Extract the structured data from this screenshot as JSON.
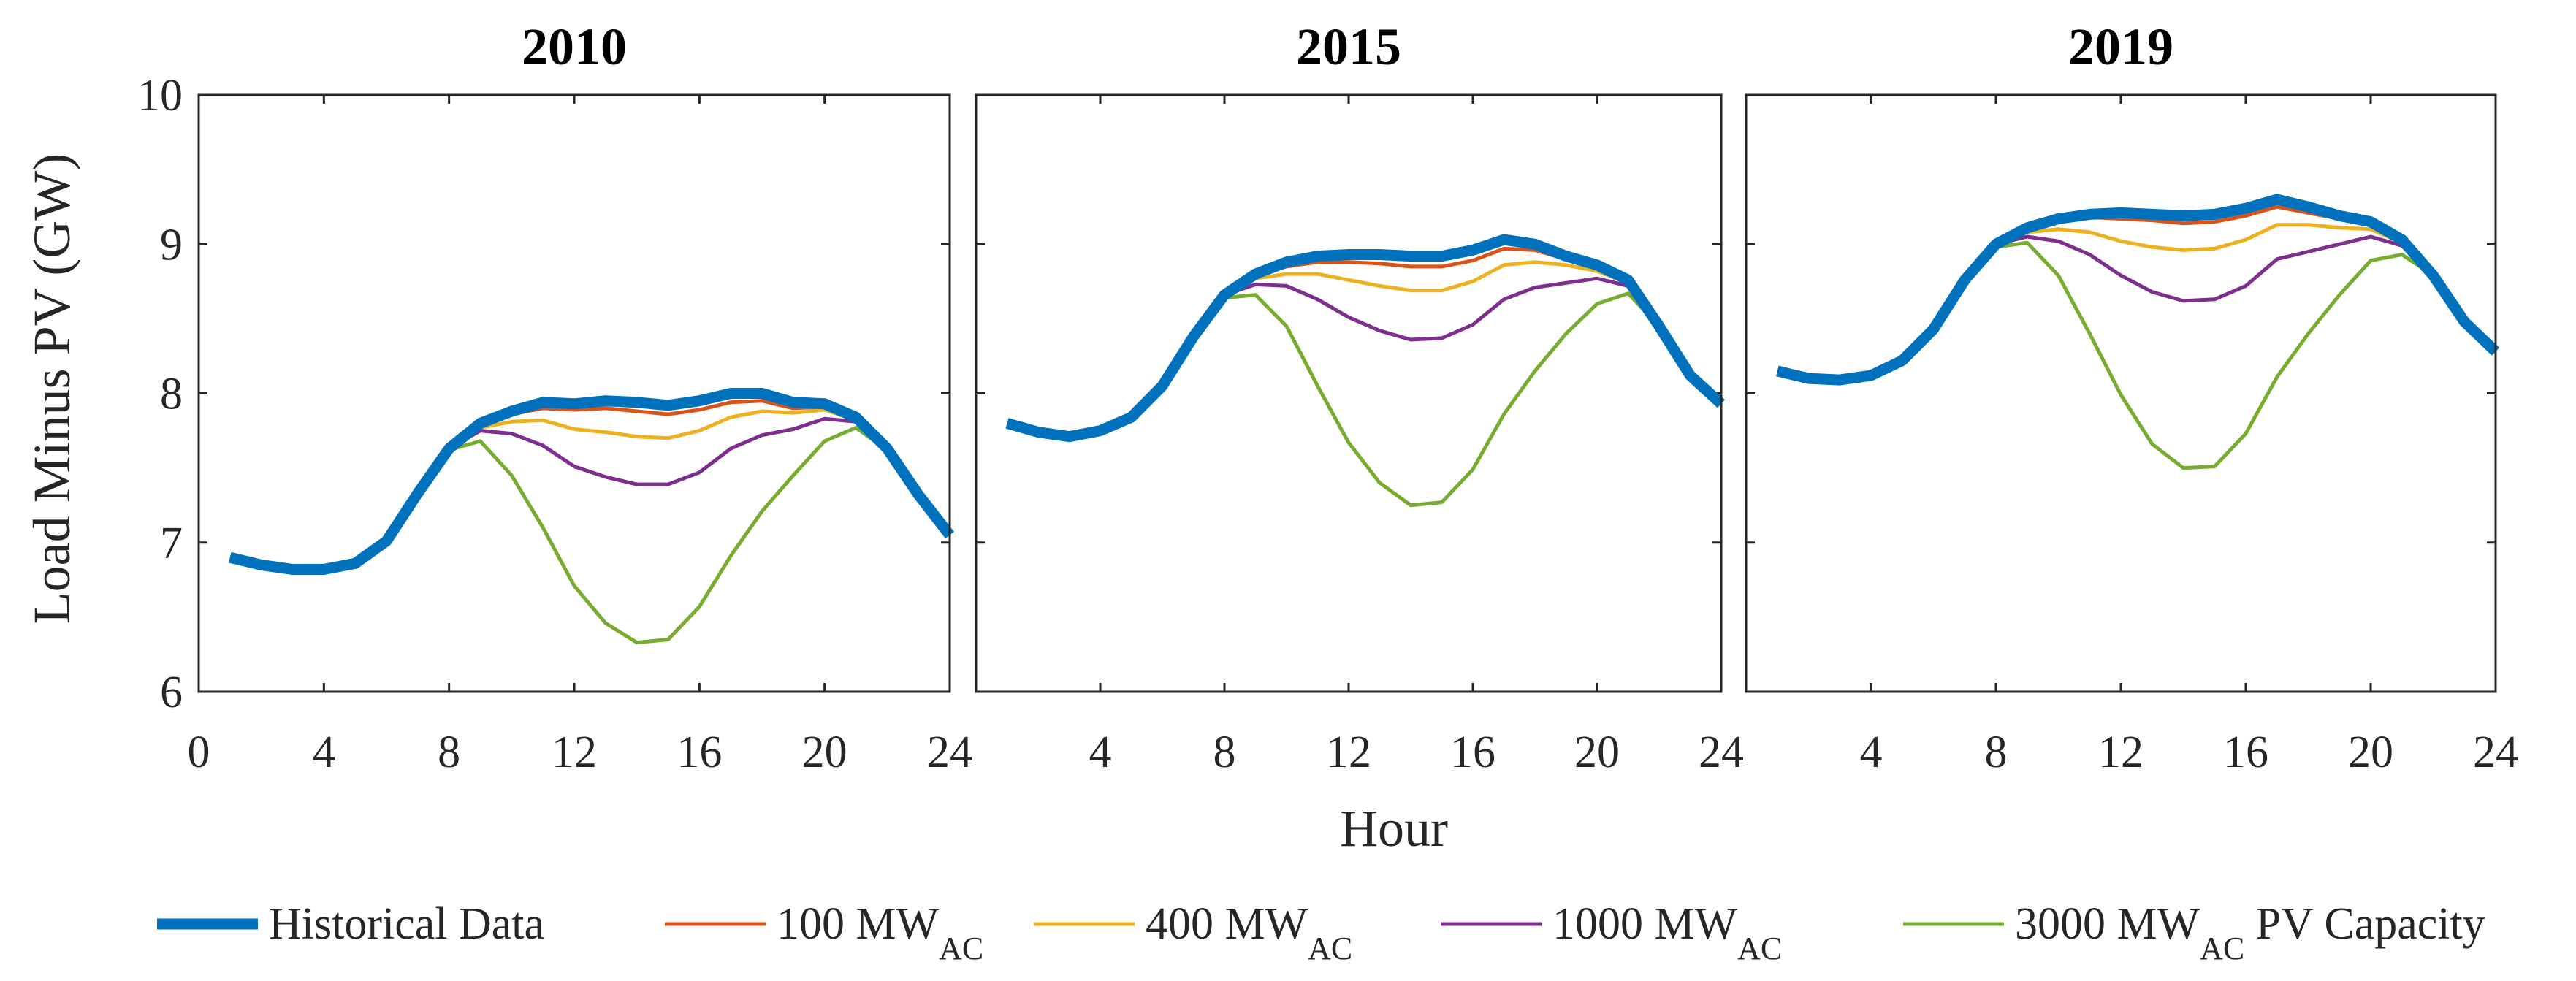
{
  "chart_data": [
    {
      "type": "line",
      "title": "2010",
      "ylabel": "Load Minus PV (GW)",
      "xlabel": "",
      "xlim": [
        0,
        24
      ],
      "ylim": [
        6,
        10
      ],
      "xticks": [
        0,
        4,
        8,
        12,
        16,
        20,
        24
      ],
      "yticks": [
        6,
        7,
        8,
        9,
        10
      ],
      "grid": false,
      "x": [
        1,
        2,
        3,
        4,
        5,
        6,
        7,
        8,
        9,
        10,
        11,
        12,
        13,
        14,
        15,
        16,
        17,
        18,
        19,
        20,
        21,
        22,
        23,
        24
      ],
      "series": [
        {
          "name": "Historical Data",
          "values": [
            6.9,
            6.85,
            6.82,
            6.82,
            6.86,
            7.01,
            7.33,
            7.63,
            7.8,
            7.88,
            7.94,
            7.93,
            7.95,
            7.94,
            7.92,
            7.95,
            8.0,
            8.0,
            7.94,
            7.93,
            7.84,
            7.63,
            7.32,
            7.05
          ]
        },
        {
          "name": "100 MW_AC",
          "values": [
            6.9,
            6.85,
            6.82,
            6.82,
            6.86,
            7.01,
            7.33,
            7.63,
            7.79,
            7.86,
            7.9,
            7.89,
            7.9,
            7.88,
            7.86,
            7.89,
            7.94,
            7.95,
            7.9,
            7.91,
            7.83,
            7.63,
            7.32,
            7.05
          ]
        },
        {
          "name": "400 MW_AC",
          "values": [
            6.9,
            6.85,
            6.82,
            6.82,
            6.86,
            7.01,
            7.33,
            7.63,
            7.77,
            7.81,
            7.82,
            7.76,
            7.74,
            7.71,
            7.7,
            7.75,
            7.84,
            7.88,
            7.87,
            7.89,
            7.82,
            7.63,
            7.32,
            7.05
          ]
        },
        {
          "name": "1000 MW_AC",
          "values": [
            6.9,
            6.85,
            6.82,
            6.82,
            6.86,
            7.01,
            7.33,
            7.63,
            7.75,
            7.73,
            7.65,
            7.51,
            7.44,
            7.39,
            7.39,
            7.47,
            7.63,
            7.72,
            7.76,
            7.83,
            7.81,
            7.63,
            7.32,
            7.05
          ]
        },
        {
          "name": "3000 MW_AC PV Capacity",
          "values": [
            6.9,
            6.85,
            6.82,
            6.82,
            6.86,
            7.01,
            7.33,
            7.62,
            7.68,
            7.45,
            7.1,
            6.71,
            6.46,
            6.33,
            6.35,
            6.57,
            6.91,
            7.21,
            7.45,
            7.68,
            7.77,
            7.62,
            7.32,
            7.05
          ]
        }
      ]
    },
    {
      "type": "line",
      "title": "2015",
      "xlim": [
        0,
        24
      ],
      "ylim": [
        6,
        10
      ],
      "xticks": [
        4,
        8,
        12,
        16,
        20,
        24
      ],
      "yticks": [
        6,
        7,
        8,
        9,
        10
      ],
      "grid": false,
      "x": [
        1,
        2,
        3,
        4,
        5,
        6,
        7,
        8,
        9,
        10,
        11,
        12,
        13,
        14,
        15,
        16,
        17,
        18,
        19,
        20,
        21,
        22,
        23,
        24
      ],
      "series": [
        {
          "name": "Historical Data",
          "values": [
            7.8,
            7.74,
            7.71,
            7.75,
            7.84,
            8.05,
            8.38,
            8.66,
            8.8,
            8.88,
            8.92,
            8.93,
            8.93,
            8.92,
            8.92,
            8.96,
            9.03,
            9.0,
            8.92,
            8.86,
            8.76,
            8.45,
            8.12,
            7.93
          ]
        },
        {
          "name": "100 MW_AC",
          "values": [
            7.8,
            7.74,
            7.71,
            7.75,
            7.84,
            8.05,
            8.38,
            8.66,
            8.79,
            8.85,
            8.88,
            8.88,
            8.87,
            8.85,
            8.85,
            8.89,
            8.97,
            8.96,
            8.9,
            8.85,
            8.75,
            8.45,
            8.12,
            7.93
          ]
        },
        {
          "name": "400 MW_AC",
          "values": [
            7.8,
            7.74,
            7.71,
            7.75,
            7.84,
            8.05,
            8.38,
            8.66,
            8.77,
            8.8,
            8.8,
            8.76,
            8.72,
            8.69,
            8.69,
            8.75,
            8.86,
            8.88,
            8.86,
            8.82,
            8.74,
            8.45,
            8.12,
            7.93
          ]
        },
        {
          "name": "1000 MW_AC",
          "values": [
            7.8,
            7.74,
            7.71,
            7.75,
            7.84,
            8.05,
            8.38,
            8.66,
            8.73,
            8.72,
            8.63,
            8.51,
            8.42,
            8.36,
            8.37,
            8.46,
            8.63,
            8.71,
            8.74,
            8.77,
            8.72,
            8.45,
            8.12,
            7.93
          ]
        },
        {
          "name": "3000 MW_AC PV Capacity",
          "values": [
            7.8,
            7.74,
            7.71,
            7.75,
            7.84,
            8.05,
            8.38,
            8.64,
            8.66,
            8.45,
            8.05,
            7.67,
            7.4,
            7.25,
            7.27,
            7.49,
            7.86,
            8.15,
            8.4,
            8.6,
            8.67,
            8.45,
            8.12,
            7.93
          ]
        }
      ]
    },
    {
      "type": "line",
      "title": "2019",
      "xlim": [
        0,
        24
      ],
      "ylim": [
        6,
        10
      ],
      "xticks": [
        4,
        8,
        12,
        16,
        20,
        24
      ],
      "yticks": [
        6,
        7,
        8,
        9,
        10
      ],
      "grid": false,
      "x": [
        1,
        2,
        3,
        4,
        5,
        6,
        7,
        8,
        9,
        10,
        11,
        12,
        13,
        14,
        15,
        16,
        17,
        18,
        19,
        20,
        21,
        22,
        23,
        24
      ],
      "series": [
        {
          "name": "Historical Data",
          "values": [
            8.15,
            8.1,
            8.09,
            8.12,
            8.22,
            8.43,
            8.76,
            9.0,
            9.11,
            9.17,
            9.2,
            9.21,
            9.2,
            9.19,
            9.2,
            9.24,
            9.3,
            9.25,
            9.19,
            9.15,
            9.03,
            8.79,
            8.48,
            8.28
          ]
        },
        {
          "name": "100 MW_AC",
          "values": [
            8.15,
            8.1,
            8.09,
            8.12,
            8.22,
            8.43,
            8.76,
            9.0,
            9.1,
            9.15,
            9.18,
            9.17,
            9.16,
            9.14,
            9.15,
            9.19,
            9.25,
            9.21,
            9.17,
            9.13,
            9.02,
            8.79,
            8.48,
            8.28
          ]
        },
        {
          "name": "400 MW_AC",
          "values": [
            8.15,
            8.1,
            8.09,
            8.12,
            8.22,
            8.43,
            8.76,
            9.0,
            9.08,
            9.1,
            9.08,
            9.02,
            8.98,
            8.96,
            8.97,
            9.03,
            9.13,
            9.13,
            9.11,
            9.1,
            9.01,
            8.79,
            8.48,
            8.28
          ]
        },
        {
          "name": "1000 MW_AC",
          "values": [
            8.15,
            8.1,
            8.09,
            8.12,
            8.22,
            8.43,
            8.76,
            9.0,
            9.05,
            9.02,
            8.93,
            8.79,
            8.68,
            8.62,
            8.63,
            8.72,
            8.9,
            8.95,
            9.0,
            9.05,
            8.99,
            8.79,
            8.48,
            8.28
          ]
        },
        {
          "name": "3000 MW_AC PV Capacity",
          "values": [
            8.15,
            8.1,
            8.09,
            8.12,
            8.22,
            8.43,
            8.76,
            8.98,
            9.01,
            8.79,
            8.4,
            7.99,
            7.66,
            7.5,
            7.51,
            7.73,
            8.11,
            8.4,
            8.66,
            8.89,
            8.93,
            8.79,
            8.48,
            8.28
          ]
        }
      ]
    }
  ],
  "figure": {
    "shared_xlabel": "Hour",
    "shared_ylabel": "Load Minus PV (GW)",
    "legend_position": "bottom",
    "legend": [
      {
        "base": "Historical Data",
        "sub": "",
        "suffix": ""
      },
      {
        "base": "100 MW",
        "sub": "AC",
        "suffix": ""
      },
      {
        "base": "400 MW",
        "sub": "AC",
        "suffix": ""
      },
      {
        "base": "1000 MW",
        "sub": "AC",
        "suffix": ""
      },
      {
        "base": "3000 MW",
        "sub": "AC",
        "suffix": " PV Capacity"
      }
    ],
    "series_colors": [
      "#0072BD",
      "#D95319",
      "#EDB120",
      "#7E2F8E",
      "#77AC30"
    ],
    "historical_outline_color": "#4DBEEE"
  }
}
